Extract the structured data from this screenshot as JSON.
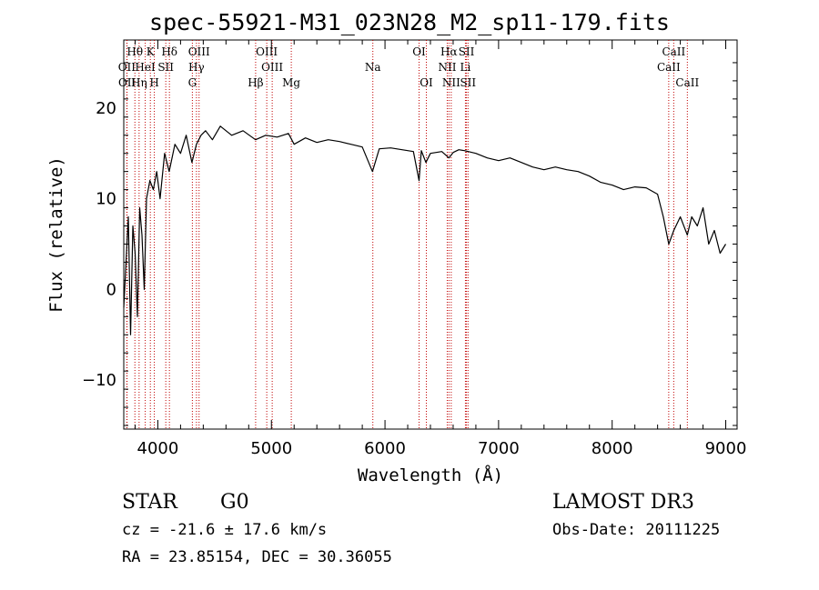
{
  "window": {
    "title": "spec-55921-M31_023N28_M2_sp11-179.fits"
  },
  "info": {
    "class_label": "STAR",
    "subclass": "G0",
    "survey": "LAMOST DR3",
    "redshift": "cz = -21.6 ± 17.6 km/s",
    "obs_date": "Obs-Date: 20111225",
    "coords": "RA =  23.85154, DEC =  30.36055"
  },
  "chart_data": {
    "type": "line",
    "title": "spec-55921-M31_023N28_M2_sp11-179.fits",
    "xlabel": "Wavelength (Å)",
    "ylabel": "Flux (relative)",
    "xlim": [
      3700,
      9100
    ],
    "ylim": [
      -15.4,
      27.5
    ],
    "x_ticks": [
      4000,
      5000,
      6000,
      7000,
      8000,
      9000
    ],
    "y_ticks": [
      -10,
      0,
      10,
      20
    ],
    "grid": false,
    "series": [
      {
        "x": [
          3700,
          3720,
          3740,
          3760,
          3780,
          3800,
          3820,
          3840,
          3860,
          3880,
          3900,
          3930,
          3960,
          3990,
          4020,
          4060,
          4100,
          4150,
          4200,
          4250,
          4300,
          4340,
          4380,
          4420,
          4480,
          4550,
          4650,
          4750,
          4860,
          4950,
          5050,
          5150,
          5200,
          5300,
          5400,
          5500,
          5600,
          5700,
          5800,
          5890,
          5950,
          6050,
          6150,
          6250,
          6300,
          6320,
          6360,
          6400,
          6500,
          6563,
          6600,
          6650,
          6700,
          6800,
          6900,
          7000,
          7100,
          7200,
          7300,
          7400,
          7500,
          7600,
          7700,
          7800,
          7900,
          8000,
          8100,
          8200,
          8300,
          8400,
          8450,
          8498,
          8542,
          8600,
          8662,
          8700,
          8750,
          8800,
          8850,
          8900,
          8950,
          9000
        ],
        "y": [
          -2,
          3,
          8,
          -5,
          7,
          4,
          -3,
          9,
          6,
          0,
          10,
          12,
          11,
          13,
          10,
          15,
          13,
          16,
          15,
          17,
          14,
          16,
          17,
          17.5,
          16.5,
          18,
          17,
          17.5,
          16.5,
          17,
          16.8,
          17.2,
          16,
          16.7,
          16.2,
          16.5,
          16.3,
          16,
          15.7,
          13,
          15.5,
          15.6,
          15.4,
          15.2,
          12,
          15.3,
          14,
          15,
          15.2,
          14.5,
          15.1,
          15.4,
          15.3,
          15,
          14.5,
          14.2,
          14.5,
          14,
          13.5,
          13.2,
          13.5,
          13.2,
          13,
          12.5,
          11.8,
          11.5,
          11,
          11.3,
          11.2,
          10.5,
          8,
          5,
          6.5,
          8,
          6,
          8,
          7,
          9,
          5,
          6.5,
          4,
          5
        ]
      }
    ],
    "lines": [
      {
        "label": "Hθ",
        "wl": 3798,
        "row": 0
      },
      {
        "label": "K",
        "wl": 3934,
        "row": 0
      },
      {
        "label": "Hδ",
        "wl": 4102,
        "row": 0
      },
      {
        "label": "OIII",
        "wl": 4363,
        "row": 0
      },
      {
        "label": "OIII",
        "wl": 4959,
        "row": 0
      },
      {
        "label": "OI",
        "wl": 6300,
        "row": 0
      },
      {
        "label": "Hα",
        "wl": 6563,
        "row": 0
      },
      {
        "label": "SII",
        "wl": 6717,
        "row": 0
      },
      {
        "label": "CaII",
        "wl": 8542,
        "row": 0
      },
      {
        "label": "OII",
        "wl": 3727,
        "row": 1
      },
      {
        "label": "HeI",
        "wl": 3889,
        "row": 1
      },
      {
        "label": "SII",
        "wl": 4070,
        "row": 1
      },
      {
        "label": "Hγ",
        "wl": 4340,
        "row": 1
      },
      {
        "label": "OIII",
        "wl": 5007,
        "row": 1
      },
      {
        "label": "Na",
        "wl": 5893,
        "row": 1
      },
      {
        "label": "NII",
        "wl": 6548,
        "row": 1
      },
      {
        "label": "Li",
        "wl": 6708,
        "row": 1
      },
      {
        "label": "CaII",
        "wl": 8498,
        "row": 1
      },
      {
        "label": "OII",
        "wl": 3729,
        "row": 2
      },
      {
        "label": "Hη",
        "wl": 3835,
        "row": 2
      },
      {
        "label": "H",
        "wl": 3969,
        "row": 2
      },
      {
        "label": "G",
        "wl": 4304,
        "row": 2
      },
      {
        "label": "Hβ",
        "wl": 4861,
        "row": 2
      },
      {
        "label": "Mg",
        "wl": 5175,
        "row": 2
      },
      {
        "label": "OI",
        "wl": 6364,
        "row": 2
      },
      {
        "label": "NII",
        "wl": 6583,
        "row": 2
      },
      {
        "label": "SII",
        "wl": 6731,
        "row": 2
      },
      {
        "label": "CaII",
        "wl": 8662,
        "row": 2
      }
    ],
    "colors": {
      "spectrum": "#000000",
      "line_markers": "#c00000",
      "axes": "#000000"
    }
  }
}
